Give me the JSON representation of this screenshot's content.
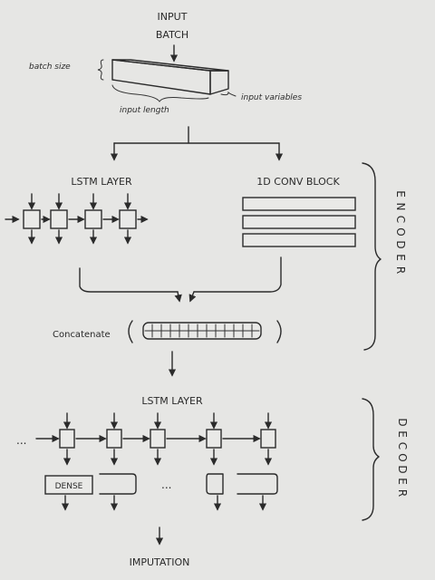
{
  "labels": {
    "input_line1": "INPUT",
    "input_line2": "BATCH",
    "batch_size": "batch size",
    "input_length": "input length",
    "input_variables": "input variables",
    "lstm_layer_encoder": "LSTM  LAYER",
    "conv_block": "1D  CONV BLOCK",
    "concatenate": "Concatenate",
    "encoder_letters": [
      "E",
      "N",
      "C",
      "O",
      "D",
      "E",
      "R"
    ],
    "lstm_layer_decoder": "LSTM  LAYER",
    "decoder_letters": [
      "D",
      "E",
      "C",
      "O",
      "D",
      "E",
      "R"
    ],
    "dense": "DENSE",
    "dots_left": "...",
    "dots_mid": "...",
    "imputation": "IMPUTATION"
  },
  "colors": {
    "paper": "#e6e6e4",
    "ink": "#2b2b2b"
  }
}
